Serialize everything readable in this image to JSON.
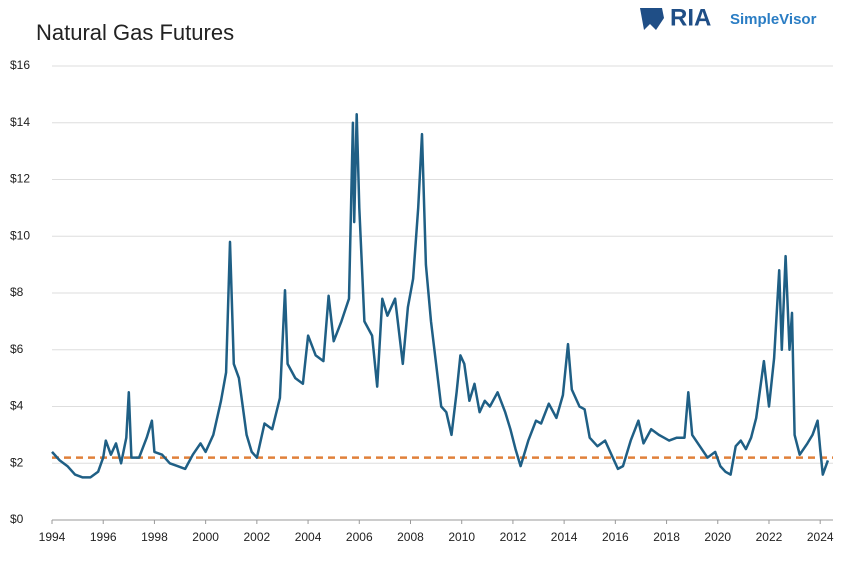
{
  "chart_data": {
    "type": "line",
    "title": "Natural Gas Futures",
    "brand": {
      "name": "RIA",
      "product": "SimpleVisor"
    },
    "xlim": [
      1994,
      2024.5
    ],
    "xticks": [
      1994,
      1996,
      1998,
      2000,
      2002,
      2004,
      2006,
      2008,
      2010,
      2012,
      2014,
      2016,
      2018,
      2020,
      2022,
      2024
    ],
    "ylim": [
      0,
      16
    ],
    "yticks": [
      {
        "value": 0,
        "label": "$0"
      },
      {
        "value": 2,
        "label": "$2"
      },
      {
        "value": 4,
        "label": "$4"
      },
      {
        "value": 6,
        "label": "$6"
      },
      {
        "value": 8,
        "label": "$8"
      },
      {
        "value": 10,
        "label": "$10"
      },
      {
        "value": 12,
        "label": "$12"
      },
      {
        "value": 14,
        "label": "$14"
      },
      {
        "value": 16,
        "label": "$16"
      }
    ],
    "grid": true,
    "reference_line": {
      "value": 2.2,
      "color": "#e0803a",
      "dashed": true
    },
    "series": [
      {
        "color": "#1f5f85",
        "x": [
          1994.0,
          1994.3,
          1994.6,
          1994.9,
          1995.2,
          1995.5,
          1995.8,
          1996.0,
          1996.1,
          1996.3,
          1996.5,
          1996.7,
          1996.9,
          1997.0,
          1997.1,
          1997.4,
          1997.7,
          1997.9,
          1998.0,
          1998.3,
          1998.6,
          1998.9,
          1999.2,
          1999.5,
          1999.8,
          2000.0,
          2000.3,
          2000.6,
          2000.8,
          2000.95,
          2001.1,
          2001.3,
          2001.6,
          2001.8,
          2002.0,
          2002.3,
          2002.6,
          2002.9,
          2003.1,
          2003.2,
          2003.5,
          2003.8,
          2004.0,
          2004.3,
          2004.6,
          2004.8,
          2005.0,
          2005.3,
          2005.6,
          2005.75,
          2005.8,
          2005.9,
          2006.0,
          2006.2,
          2006.5,
          2006.7,
          2006.9,
          2007.1,
          2007.4,
          2007.7,
          2007.9,
          2008.1,
          2008.3,
          2008.45,
          2008.6,
          2008.8,
          2009.0,
          2009.2,
          2009.4,
          2009.6,
          2009.8,
          2009.95,
          2010.1,
          2010.3,
          2010.5,
          2010.7,
          2010.9,
          2011.1,
          2011.4,
          2011.7,
          2011.9,
          2012.1,
          2012.3,
          2012.6,
          2012.9,
          2013.1,
          2013.4,
          2013.7,
          2013.95,
          2014.15,
          2014.3,
          2014.6,
          2014.8,
          2015.0,
          2015.3,
          2015.6,
          2015.9,
          2016.1,
          2016.3,
          2016.6,
          2016.9,
          2017.1,
          2017.4,
          2017.7,
          2017.9,
          2018.1,
          2018.4,
          2018.7,
          2018.85,
          2019.0,
          2019.3,
          2019.6,
          2019.9,
          2020.1,
          2020.3,
          2020.5,
          2020.7,
          2020.9,
          2021.1,
          2021.3,
          2021.5,
          2021.8,
          2022.0,
          2022.2,
          2022.4,
          2022.5,
          2022.65,
          2022.8,
          2022.9,
          2023.0,
          2023.2,
          2023.5,
          2023.7,
          2023.9,
          2024.0,
          2024.1,
          2024.3
        ],
        "values": [
          2.4,
          2.1,
          1.9,
          1.6,
          1.5,
          1.5,
          1.7,
          2.2,
          2.8,
          2.3,
          2.7,
          2.0,
          2.9,
          4.5,
          2.2,
          2.2,
          2.9,
          3.5,
          2.4,
          2.3,
          2.0,
          1.9,
          1.8,
          2.3,
          2.7,
          2.4,
          3.0,
          4.2,
          5.2,
          9.8,
          5.5,
          5.0,
          3.0,
          2.4,
          2.2,
          3.4,
          3.2,
          4.3,
          8.1,
          5.5,
          5.0,
          4.8,
          6.5,
          5.8,
          5.6,
          7.9,
          6.3,
          7.0,
          7.8,
          14.0,
          10.5,
          14.3,
          11.0,
          7.0,
          6.5,
          4.7,
          7.8,
          7.2,
          7.8,
          5.5,
          7.5,
          8.5,
          11.0,
          13.6,
          9.0,
          7.0,
          5.5,
          4.0,
          3.8,
          3.0,
          4.5,
          5.8,
          5.5,
          4.2,
          4.8,
          3.8,
          4.2,
          4.0,
          4.5,
          3.8,
          3.2,
          2.5,
          1.9,
          2.8,
          3.5,
          3.4,
          4.1,
          3.6,
          4.4,
          6.2,
          4.6,
          4.0,
          3.9,
          2.9,
          2.6,
          2.8,
          2.2,
          1.8,
          1.9,
          2.8,
          3.5,
          2.7,
          3.2,
          3.0,
          2.9,
          2.8,
          2.9,
          2.9,
          4.5,
          3.0,
          2.6,
          2.2,
          2.4,
          1.9,
          1.7,
          1.6,
          2.6,
          2.8,
          2.5,
          2.9,
          3.6,
          5.6,
          4.0,
          5.7,
          8.8,
          6.0,
          9.3,
          6.0,
          7.3,
          3.0,
          2.3,
          2.7,
          3.0,
          3.5,
          2.5,
          1.6,
          2.1
        ]
      }
    ]
  }
}
